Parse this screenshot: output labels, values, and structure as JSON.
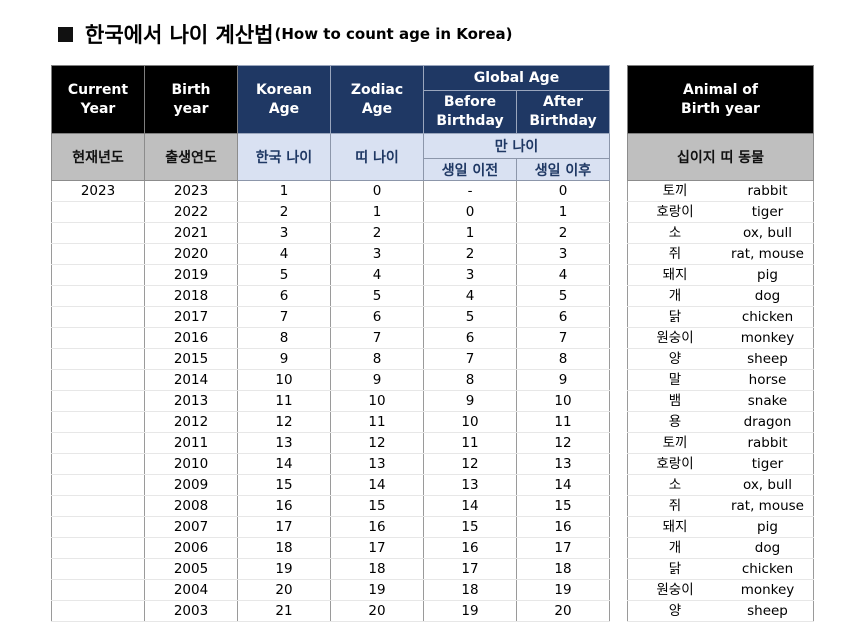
{
  "title": {
    "ko": "한국에서 나이 계산법",
    "en": "(How to count age in Korea)"
  },
  "headers": {
    "current_year": "Current Year",
    "birth_year": "Birth year",
    "korean_age": "Korean Age",
    "zodiac_age": "Zodiac Age",
    "global_age": "Global Age",
    "before_birthday": "Before Birthday",
    "after_birthday": "After Birthday",
    "animal": "Animal of Birth year"
  },
  "headers_ko": {
    "current_year": "현재년도",
    "birth_year": "출생연도",
    "korean_age": "한국 나이",
    "zodiac_age": "띠 나이",
    "global_age": "만 나이",
    "before_birthday": "생일 이전",
    "after_birthday": "생일 이후",
    "animal": "십이지 띠 동물"
  },
  "rows": [
    {
      "current": "2023",
      "birth": "2023",
      "korean": "1",
      "zodiac": "0",
      "before": "-",
      "after": "0",
      "animal_ko": "토끼",
      "animal_en": "rabbit"
    },
    {
      "current": "",
      "birth": "2022",
      "korean": "2",
      "zodiac": "1",
      "before": "0",
      "after": "1",
      "animal_ko": "호랑이",
      "animal_en": "tiger"
    },
    {
      "current": "",
      "birth": "2021",
      "korean": "3",
      "zodiac": "2",
      "before": "1",
      "after": "2",
      "animal_ko": "소",
      "animal_en": "ox, bull"
    },
    {
      "current": "",
      "birth": "2020",
      "korean": "4",
      "zodiac": "3",
      "before": "2",
      "after": "3",
      "animal_ko": "쥐",
      "animal_en": "rat, mouse"
    },
    {
      "current": "",
      "birth": "2019",
      "korean": "5",
      "zodiac": "4",
      "before": "3",
      "after": "4",
      "animal_ko": "돼지",
      "animal_en": "pig"
    },
    {
      "current": "",
      "birth": "2018",
      "korean": "6",
      "zodiac": "5",
      "before": "4",
      "after": "5",
      "animal_ko": "개",
      "animal_en": "dog"
    },
    {
      "current": "",
      "birth": "2017",
      "korean": "7",
      "zodiac": "6",
      "before": "5",
      "after": "6",
      "animal_ko": "닭",
      "animal_en": "chicken"
    },
    {
      "current": "",
      "birth": "2016",
      "korean": "8",
      "zodiac": "7",
      "before": "6",
      "after": "7",
      "animal_ko": "원숭이",
      "animal_en": "monkey"
    },
    {
      "current": "",
      "birth": "2015",
      "korean": "9",
      "zodiac": "8",
      "before": "7",
      "after": "8",
      "animal_ko": "양",
      "animal_en": "sheep"
    },
    {
      "current": "",
      "birth": "2014",
      "korean": "10",
      "zodiac": "9",
      "before": "8",
      "after": "9",
      "animal_ko": "말",
      "animal_en": "horse"
    },
    {
      "current": "",
      "birth": "2013",
      "korean": "11",
      "zodiac": "10",
      "before": "9",
      "after": "10",
      "animal_ko": "뱀",
      "animal_en": "snake"
    },
    {
      "current": "",
      "birth": "2012",
      "korean": "12",
      "zodiac": "11",
      "before": "10",
      "after": "11",
      "animal_ko": "용",
      "animal_en": "dragon"
    },
    {
      "current": "",
      "birth": "2011",
      "korean": "13",
      "zodiac": "12",
      "before": "11",
      "after": "12",
      "animal_ko": "토끼",
      "animal_en": "rabbit"
    },
    {
      "current": "",
      "birth": "2010",
      "korean": "14",
      "zodiac": "13",
      "before": "12",
      "after": "13",
      "animal_ko": "호랑이",
      "animal_en": "tiger"
    },
    {
      "current": "",
      "birth": "2009",
      "korean": "15",
      "zodiac": "14",
      "before": "13",
      "after": "14",
      "animal_ko": "소",
      "animal_en": "ox, bull"
    },
    {
      "current": "",
      "birth": "2008",
      "korean": "16",
      "zodiac": "15",
      "before": "14",
      "after": "15",
      "animal_ko": "쥐",
      "animal_en": "rat, mouse"
    },
    {
      "current": "",
      "birth": "2007",
      "korean": "17",
      "zodiac": "16",
      "before": "15",
      "after": "16",
      "animal_ko": "돼지",
      "animal_en": "pig"
    },
    {
      "current": "",
      "birth": "2006",
      "korean": "18",
      "zodiac": "17",
      "before": "16",
      "after": "17",
      "animal_ko": "개",
      "animal_en": "dog"
    },
    {
      "current": "",
      "birth": "2005",
      "korean": "19",
      "zodiac": "18",
      "before": "17",
      "after": "18",
      "animal_ko": "닭",
      "animal_en": "chicken"
    },
    {
      "current": "",
      "birth": "2004",
      "korean": "20",
      "zodiac": "19",
      "before": "18",
      "after": "19",
      "animal_ko": "원숭이",
      "animal_en": "monkey"
    },
    {
      "current": "",
      "birth": "2003",
      "korean": "21",
      "zodiac": "20",
      "before": "19",
      "after": "20",
      "animal_ko": "양",
      "animal_en": "sheep"
    }
  ]
}
